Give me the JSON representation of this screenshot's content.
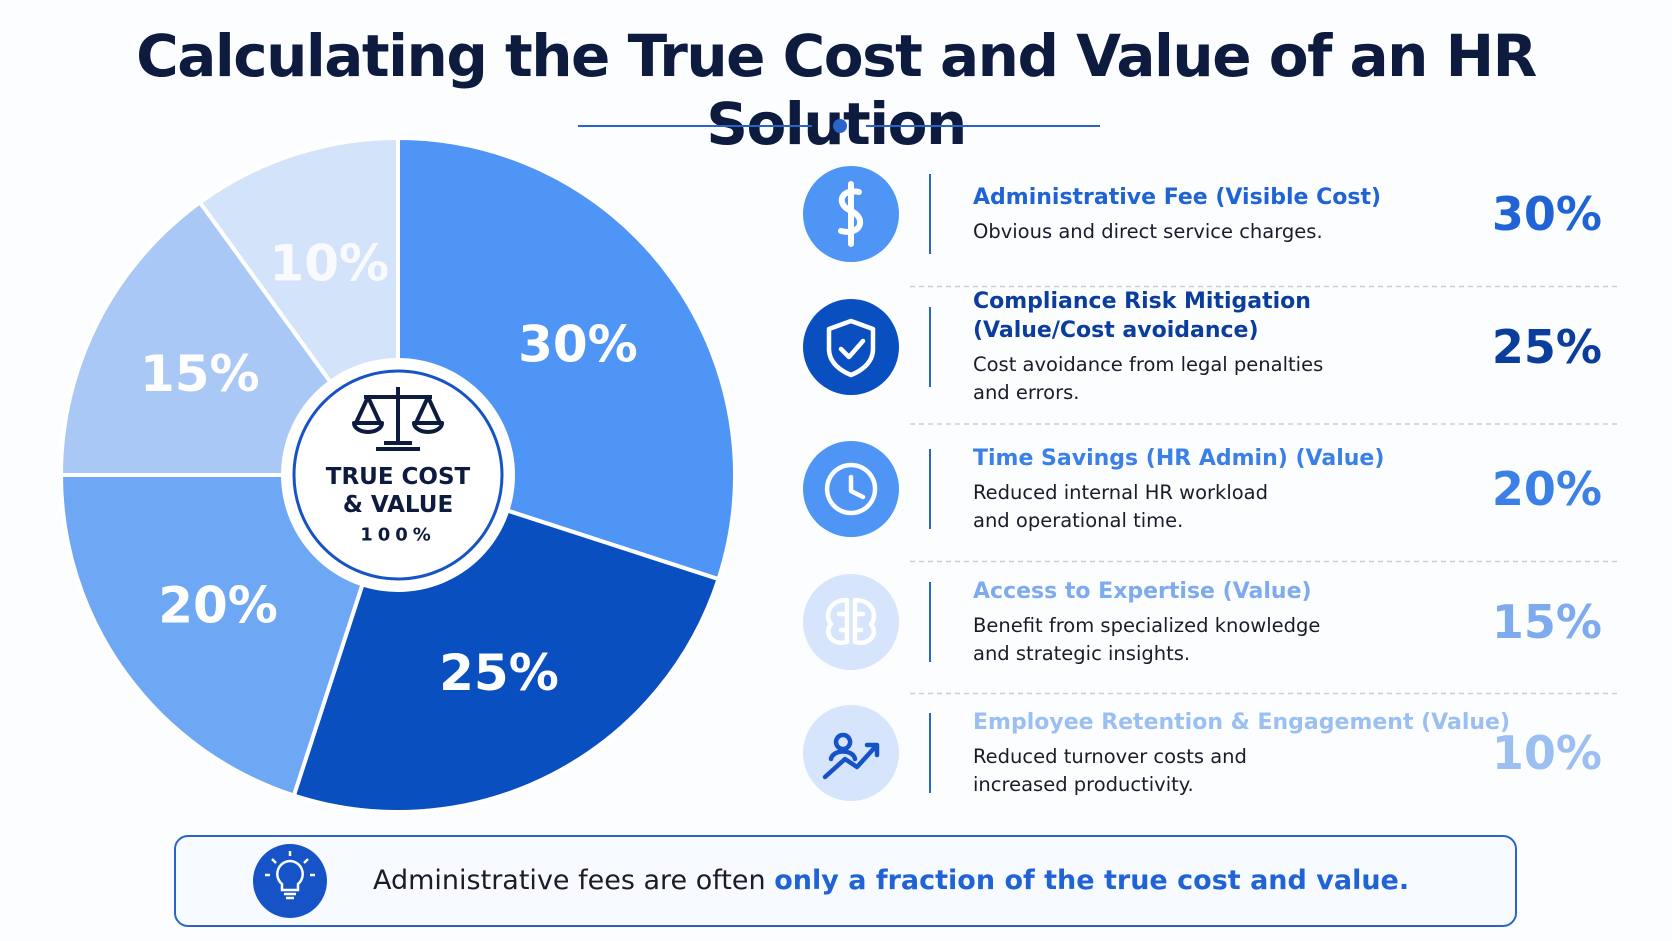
{
  "chart_data": {
    "type": "pie",
    "title": "Calculating the True Cost and Value of an HR Solution",
    "categories": [
      "Administrative Fee (Visible Cost)",
      "Compliance Risk Mitigation (Value/Cost avoidance)",
      "Time Savings (HR Admin) (Value)",
      "Access to Expertise (Value)",
      "Employee Retention & Engagement (Value)"
    ],
    "descriptions": [
      [
        "Obvious and direct service charges."
      ],
      [
        "Cost avoidance from legal penalties",
        "and errors."
      ],
      [
        "Reduced internal HR workload",
        "and operational time."
      ],
      [
        "Benefit from specialized knowledge",
        "and strategic insights."
      ],
      [
        "Reduced turnover costs and",
        "increased productivity."
      ]
    ],
    "values": [
      30,
      25,
      20,
      15,
      10
    ],
    "value_labels": [
      "30%",
      "25%",
      "20%",
      "15%",
      "10%"
    ],
    "colors": [
      "#4f95f5",
      "#0a4fc0",
      "#6ea7f3",
      "#a9c8f6",
      "#d3e3fa"
    ],
    "text_colors": [
      "#1f63d4",
      "#0b3d9c",
      "#3a80e6",
      "#7eaaee",
      "#9cbff2"
    ],
    "center_lines": [
      "TRUE COST",
      "& VALUE"
    ],
    "center_total": "100%",
    "footer": [
      "Administrative fees are often ",
      "only a fraction of the true cost and value."
    ]
  }
}
